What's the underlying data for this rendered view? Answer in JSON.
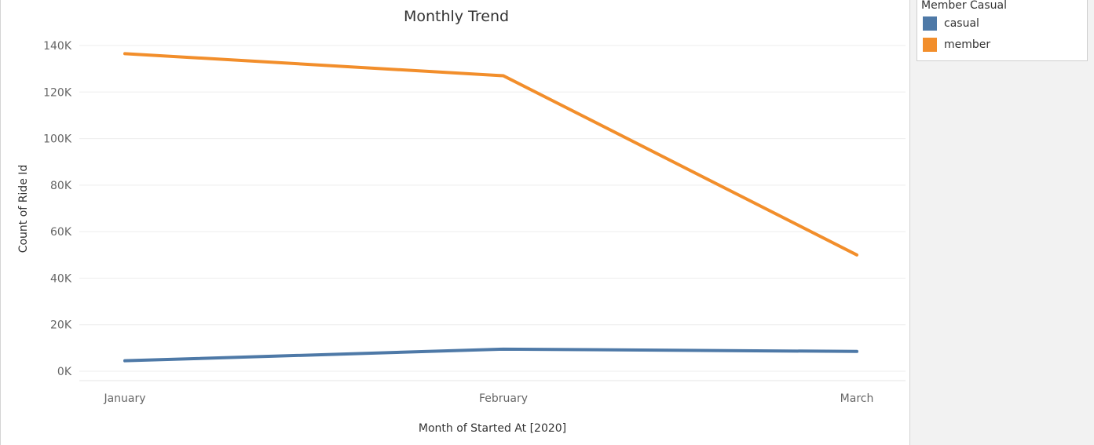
{
  "chart_data": {
    "type": "line",
    "title": "Monthly Trend",
    "xlabel": "Month of Started At [2020]",
    "ylabel": "Count of Ride Id",
    "categories": [
      "January",
      "February",
      "March"
    ],
    "y_ticks": [
      0,
      20000,
      40000,
      60000,
      80000,
      100000,
      120000,
      140000
    ],
    "y_tick_labels": [
      "0K",
      "20K",
      "40K",
      "60K",
      "80K",
      "100K",
      "120K",
      "140K"
    ],
    "ylim": [
      0,
      140000
    ],
    "grid": true,
    "legend_placement": "right",
    "series": [
      {
        "name": "casual",
        "color": "#4e79a7",
        "values": [
          4500,
          9500,
          8500
        ]
      },
      {
        "name": "member",
        "color": "#f28e2b",
        "values": [
          136500,
          127000,
          50000
        ]
      }
    ]
  },
  "legend": {
    "title": "Member Casual",
    "items": [
      {
        "label": "casual",
        "color": "#4e79a7"
      },
      {
        "label": "member",
        "color": "#f28e2b"
      }
    ]
  }
}
